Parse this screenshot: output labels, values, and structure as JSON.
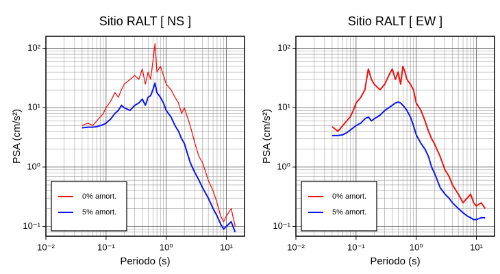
{
  "chart_data": [
    {
      "type": "line",
      "title": "Sitio RALT [ NS ]",
      "xlabel": "Periodo (s)",
      "ylabel": "PSA (cm/s²)",
      "log_x": true,
      "log_y": true,
      "grid": true,
      "legend": "lower left",
      "xlim": [
        0.01,
        20
      ],
      "ylim": [
        0.068,
        160
      ],
      "xticks": [
        {
          "value": 0.01,
          "label": "10⁻²"
        },
        {
          "value": 0.1,
          "label": "10⁻¹"
        },
        {
          "value": 1,
          "label": "10⁰"
        },
        {
          "value": 10,
          "label": "10¹"
        }
      ],
      "yticks": [
        {
          "value": 0.1,
          "label": "10⁻¹"
        },
        {
          "value": 1,
          "label": "10⁰"
        },
        {
          "value": 10,
          "label": "10¹"
        },
        {
          "value": 100,
          "label": "10²"
        }
      ],
      "x": [
        0.04,
        0.05,
        0.06,
        0.07,
        0.08,
        0.09,
        0.1,
        0.12,
        0.14,
        0.16,
        0.18,
        0.2,
        0.25,
        0.3,
        0.35,
        0.4,
        0.45,
        0.5,
        0.55,
        0.6,
        0.65,
        0.7,
        0.8,
        0.9,
        1.0,
        1.2,
        1.4,
        1.6,
        1.8,
        2.0,
        2.5,
        3.0,
        3.5,
        4.0,
        5,
        6,
        7,
        8,
        9,
        10,
        12,
        14
      ],
      "series": [
        {
          "name": "0% amort.",
          "color": "#ee1111",
          "width": 1.3,
          "values": [
            5,
            5.5,
            5,
            6,
            7,
            8,
            10,
            13,
            18,
            15,
            20,
            25,
            30,
            35,
            30,
            45,
            25,
            40,
            30,
            60,
            120,
            40,
            50,
            35,
            25,
            20,
            15,
            12,
            8,
            10,
            5,
            2.5,
            1.5,
            1.2,
            0.6,
            0.4,
            0.25,
            0.15,
            0.12,
            0.15,
            0.2,
            0.1
          ]
        },
        {
          "name": "5% amort.",
          "color": "#0a14ee",
          "width": 2,
          "values": [
            4.6,
            4.7,
            4.7,
            4.8,
            5,
            5.2,
            5.5,
            6.5,
            8,
            9,
            11,
            10,
            9,
            11,
            12,
            14,
            11,
            15,
            16,
            20,
            26,
            18,
            15,
            12,
            9,
            7,
            5,
            4,
            3,
            2.5,
            1.2,
            0.8,
            0.6,
            0.45,
            0.3,
            0.2,
            0.15,
            0.11,
            0.09,
            0.1,
            0.12,
            0.08
          ]
        }
      ]
    },
    {
      "type": "line",
      "title": "Sitio RALT [ EW ]",
      "xlabel": "Periodo (s)",
      "ylabel": "PSA (cm/s²)",
      "log_x": true,
      "log_y": true,
      "grid": true,
      "legend": "lower left",
      "xlim": [
        0.01,
        20
      ],
      "ylim": [
        0.068,
        160
      ],
      "xticks": [
        {
          "value": 0.01,
          "label": "10⁻²"
        },
        {
          "value": 0.1,
          "label": "10⁻¹"
        },
        {
          "value": 1,
          "label": "10⁰"
        },
        {
          "value": 10,
          "label": "10¹"
        }
      ],
      "yticks": [
        {
          "value": 0.1,
          "label": "10⁻¹"
        },
        {
          "value": 1,
          "label": "10⁰"
        },
        {
          "value": 10,
          "label": "10¹"
        },
        {
          "value": 100,
          "label": "10²"
        }
      ],
      "x": [
        0.04,
        0.05,
        0.06,
        0.07,
        0.08,
        0.09,
        0.1,
        0.12,
        0.14,
        0.16,
        0.18,
        0.2,
        0.25,
        0.3,
        0.35,
        0.4,
        0.45,
        0.5,
        0.55,
        0.6,
        0.65,
        0.7,
        0.8,
        0.9,
        1.0,
        1.2,
        1.4,
        1.6,
        1.8,
        2.0,
        2.5,
        3.0,
        3.5,
        4.0,
        5,
        6,
        7,
        8,
        9,
        10,
        12,
        14
      ],
      "series": [
        {
          "name": "0% amort.",
          "color": "#ee1111",
          "width": 2,
          "values": [
            4.8,
            4,
            5,
            6,
            7,
            9,
            12,
            15,
            20,
            45,
            30,
            25,
            20,
            25,
            35,
            45,
            30,
            40,
            25,
            50,
            40,
            30,
            25,
            20,
            12,
            9,
            6,
            4,
            3,
            2.5,
            1.5,
            0.9,
            0.7,
            0.5,
            0.35,
            0.25,
            0.3,
            0.35,
            0.25,
            0.22,
            0.25,
            0.2
          ]
        },
        {
          "name": "5% amort.",
          "color": "#0a14ee",
          "width": 2,
          "values": [
            3.4,
            3.4,
            3.5,
            3.8,
            4.2,
            4.6,
            5,
            5.5,
            6.5,
            7,
            6,
            6.5,
            7.5,
            9,
            10,
            11,
            12,
            12.5,
            12,
            11,
            10,
            9,
            7,
            5,
            3.5,
            2.5,
            2,
            1.5,
            1,
            0.8,
            0.45,
            0.35,
            0.3,
            0.25,
            0.2,
            0.17,
            0.15,
            0.14,
            0.13,
            0.13,
            0.14,
            0.14
          ]
        }
      ]
    }
  ]
}
